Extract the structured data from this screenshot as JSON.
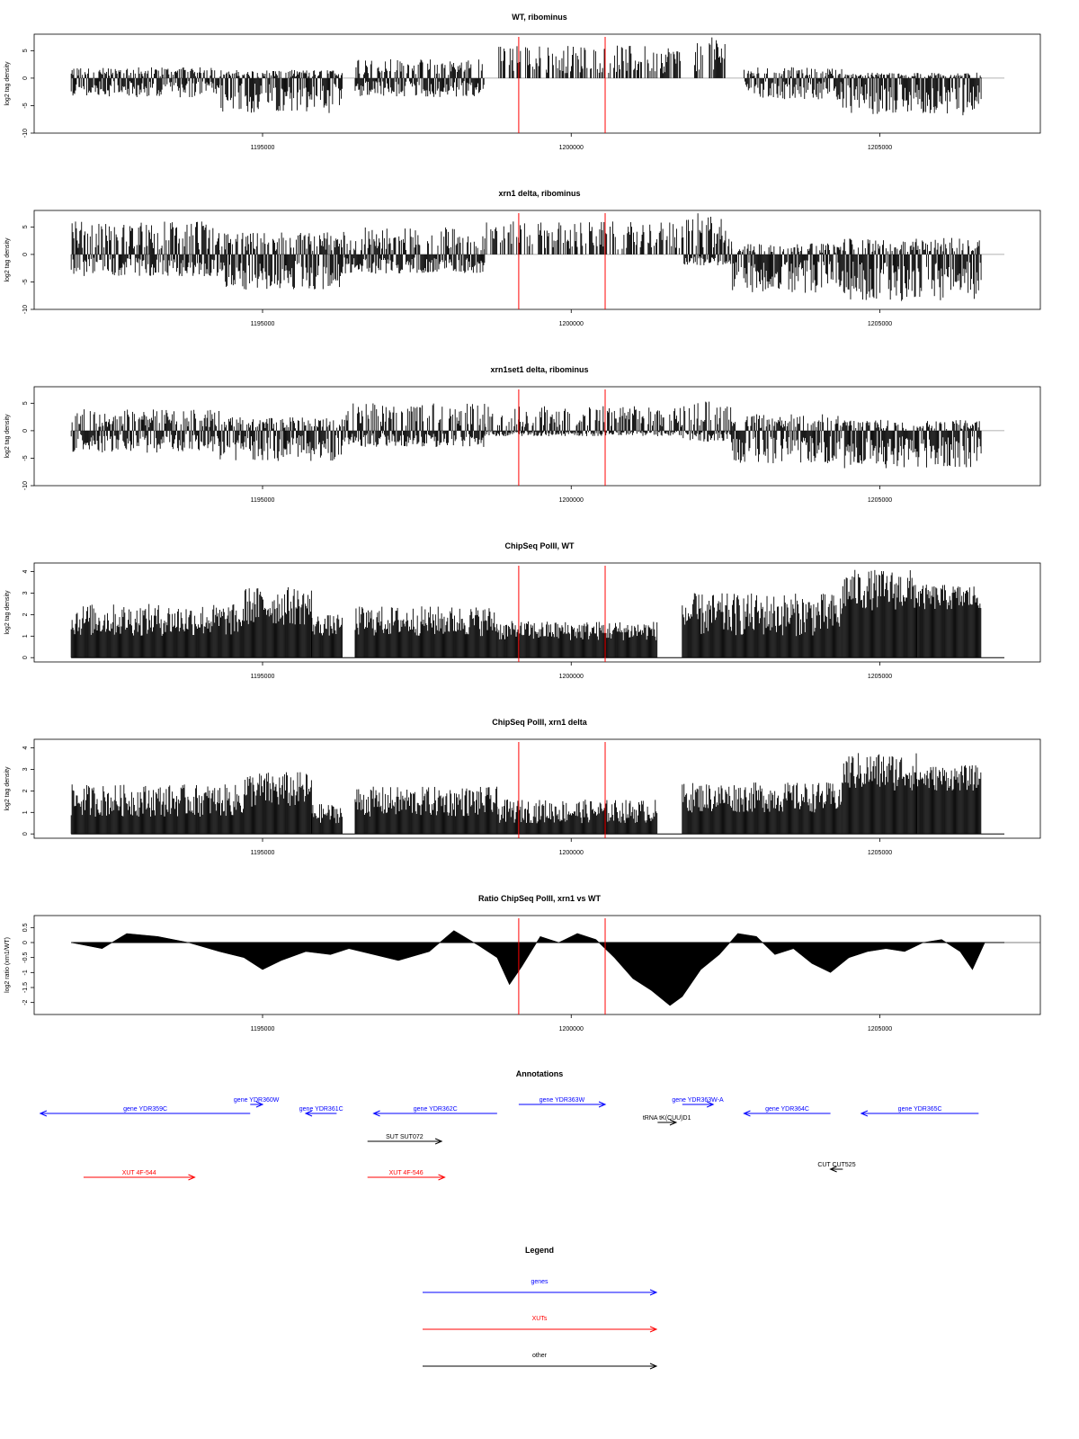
{
  "chart_data": [
    {
      "type": "bar",
      "title": "WT, ribominus",
      "ylabel": "log2 tag density",
      "ylim": [
        -10,
        8
      ],
      "yticks": [
        -10,
        -5,
        0,
        5
      ],
      "xlim": [
        1191300,
        1207600
      ],
      "xticks": [
        1195000,
        1200000,
        1205000
      ],
      "xtick_labels": [
        "1195000",
        "1200000",
        "1205000"
      ],
      "red_lines": [
        1199150,
        1200550
      ],
      "signal_range": [
        1191900,
        1206650
      ],
      "approx_envelope": [
        {
          "x": [
            1191900,
            1194300
          ],
          "top": 2,
          "bottom": -3.5
        },
        {
          "x": [
            1194300,
            1196300
          ],
          "top": 1.5,
          "bottom": -6.5
        },
        {
          "x": [
            1196500,
            1198600
          ],
          "top": 3.5,
          "bottom": -3.5
        },
        {
          "x": [
            1198800,
            1201800
          ],
          "top": 6,
          "bottom": 0
        },
        {
          "x": [
            1202000,
            1202500
          ],
          "top": 7.5,
          "bottom": 0
        },
        {
          "x": [
            1202800,
            1204400
          ],
          "top": 2,
          "bottom": -4
        },
        {
          "x": [
            1204400,
            1206650
          ],
          "top": 1,
          "bottom": -7
        }
      ]
    },
    {
      "type": "bar",
      "title": "xrn1 delta, ribominus",
      "ylabel": "log2 tag density",
      "ylim": [
        -10,
        8
      ],
      "yticks": [
        -10,
        -5,
        0,
        5
      ],
      "xlim": [
        1191300,
        1207600
      ],
      "xticks": [
        1195000,
        1200000,
        1205000
      ],
      "xtick_labels": [
        "1195000",
        "1200000",
        "1205000"
      ],
      "red_lines": [
        1199150,
        1200550
      ],
      "signal_range": [
        1191900,
        1206650
      ],
      "approx_envelope": [
        {
          "x": [
            1191900,
            1194300
          ],
          "top": 6,
          "bottom": -4
        },
        {
          "x": [
            1194300,
            1196300
          ],
          "top": 4,
          "bottom": -6.5
        },
        {
          "x": [
            1196300,
            1198600
          ],
          "top": 5,
          "bottom": -3.5
        },
        {
          "x": [
            1198600,
            1201800
          ],
          "top": 6,
          "bottom": 0
        },
        {
          "x": [
            1201800,
            1202600
          ],
          "top": 7.5,
          "bottom": -2
        },
        {
          "x": [
            1202600,
            1204400
          ],
          "top": 2,
          "bottom": -7
        },
        {
          "x": [
            1204400,
            1206650
          ],
          "top": 3,
          "bottom": -8.5
        }
      ]
    },
    {
      "type": "bar",
      "title": "xrn1set1 delta, ribominus",
      "ylabel": "log2 tag density",
      "ylim": [
        -10,
        8
      ],
      "yticks": [
        -10,
        -5,
        0,
        5
      ],
      "xlim": [
        1191300,
        1207600
      ],
      "xticks": [
        1195000,
        1200000,
        1205000
      ],
      "xtick_labels": [
        "1195000",
        "1200000",
        "1205000"
      ],
      "red_lines": [
        1199150,
        1200550
      ],
      "signal_range": [
        1191900,
        1206650
      ],
      "approx_envelope": [
        {
          "x": [
            1191900,
            1194300
          ],
          "top": 4,
          "bottom": -4
        },
        {
          "x": [
            1194300,
            1196300
          ],
          "top": 2.5,
          "bottom": -5.5
        },
        {
          "x": [
            1196300,
            1198600
          ],
          "top": 5,
          "bottom": -3
        },
        {
          "x": [
            1198600,
            1201800
          ],
          "top": 4.5,
          "bottom": -1
        },
        {
          "x": [
            1201800,
            1202600
          ],
          "top": 5.5,
          "bottom": -2
        },
        {
          "x": [
            1202600,
            1204400
          ],
          "top": 3,
          "bottom": -6
        },
        {
          "x": [
            1204400,
            1206650
          ],
          "top": 2,
          "bottom": -7
        }
      ]
    },
    {
      "type": "bar",
      "title": "ChipSeq PolII, WT",
      "ylabel": "log2 tag density",
      "ylim": [
        -0.2,
        4.4
      ],
      "yticks": [
        0,
        1,
        2,
        3,
        4
      ],
      "xlim": [
        1191300,
        1207600
      ],
      "xticks": [
        1195000,
        1200000,
        1205000
      ],
      "xtick_labels": [
        "1195000",
        "1200000",
        "1205000"
      ],
      "red_lines": [
        1199150,
        1200550
      ],
      "signal_range": [
        1191900,
        1206650
      ],
      "approx_envelope": [
        {
          "x": [
            1191900,
            1194700
          ],
          "top": 2.5,
          "base": 1
        },
        {
          "x": [
            1194700,
            1195800
          ],
          "top": 3.3,
          "base": 1.5
        },
        {
          "x": [
            1195800,
            1196300
          ],
          "top": 2,
          "base": 1
        },
        {
          "x": [
            1196500,
            1198800
          ],
          "top": 2.4,
          "base": 1
        },
        {
          "x": [
            1198800,
            1201400
          ],
          "top": 1.7,
          "base": 0.8
        },
        {
          "x": [
            1201800,
            1204400
          ],
          "top": 3,
          "base": 1
        },
        {
          "x": [
            1204400,
            1205600
          ],
          "top": 4.1,
          "base": 2.2
        },
        {
          "x": [
            1205600,
            1206650
          ],
          "top": 3.4,
          "base": 2.2
        }
      ]
    },
    {
      "type": "bar",
      "title": "ChipSeq PolII, xrn1 delta",
      "ylabel": "log2 tag density",
      "ylim": [
        -0.2,
        4.4
      ],
      "yticks": [
        0,
        1,
        2,
        3,
        4
      ],
      "xlim": [
        1191300,
        1207600
      ],
      "xticks": [
        1195000,
        1200000,
        1205000
      ],
      "xtick_labels": [
        "1195000",
        "1200000",
        "1205000"
      ],
      "red_lines": [
        1199150,
        1200550
      ],
      "signal_range": [
        1191900,
        1206650
      ],
      "approx_envelope": [
        {
          "x": [
            1191900,
            1194700
          ],
          "top": 2.3,
          "base": 0.8
        },
        {
          "x": [
            1194700,
            1195800
          ],
          "top": 2.9,
          "base": 1.2
        },
        {
          "x": [
            1195800,
            1196300
          ],
          "top": 1.4,
          "base": 0.5
        },
        {
          "x": [
            1196500,
            1198800
          ],
          "top": 2.2,
          "base": 0.8
        },
        {
          "x": [
            1198800,
            1201400
          ],
          "top": 1.6,
          "base": 0.5
        },
        {
          "x": [
            1201800,
            1204400
          ],
          "top": 2.4,
          "base": 1
        },
        {
          "x": [
            1204400,
            1205600
          ],
          "top": 3.8,
          "base": 2
        },
        {
          "x": [
            1205600,
            1206650
          ],
          "top": 3.2,
          "base": 2
        }
      ]
    },
    {
      "type": "area",
      "title": "Ratio ChipSeq PolII, xrn1 vs WT",
      "ylabel": "log2 ratio (xrn1/WT)",
      "ylim": [
        -2.4,
        0.9
      ],
      "yticks": [
        -2.0,
        -1.5,
        -1.0,
        -0.5,
        0.0,
        0.5
      ],
      "xlim": [
        1191300,
        1207600
      ],
      "xticks": [
        1195000,
        1200000,
        1205000
      ],
      "xtick_labels": [
        "1195000",
        "1200000",
        "1205000"
      ],
      "red_lines": [
        1199150,
        1200550
      ],
      "x": [
        1191900,
        1192400,
        1192800,
        1193300,
        1193800,
        1194300,
        1194700,
        1195000,
        1195300,
        1195700,
        1196100,
        1196400,
        1196800,
        1197200,
        1197700,
        1198100,
        1198500,
        1198800,
        1199000,
        1199200,
        1199500,
        1199800,
        1200100,
        1200400,
        1200700,
        1201000,
        1201300,
        1201600,
        1201800,
        1202100,
        1202400,
        1202700,
        1203000,
        1203300,
        1203600,
        1203900,
        1204200,
        1204500,
        1204800,
        1205100,
        1205400,
        1205700,
        1206000,
        1206300,
        1206500,
        1206700,
        1207600
      ],
      "y": [
        0.0,
        -0.2,
        0.3,
        0.2,
        0.0,
        -0.3,
        -0.5,
        -0.9,
        -0.6,
        -0.3,
        -0.4,
        -0.2,
        -0.4,
        -0.6,
        -0.3,
        0.4,
        -0.1,
        -0.5,
        -1.4,
        -0.8,
        0.2,
        0.0,
        0.3,
        0.1,
        -0.5,
        -1.2,
        -1.6,
        -2.1,
        -1.8,
        -0.9,
        -0.4,
        0.3,
        0.2,
        -0.4,
        -0.2,
        -0.7,
        -1.0,
        -0.5,
        -0.3,
        -0.2,
        -0.3,
        0.0,
        0.1,
        -0.3,
        -0.9,
        0.0,
        0.0
      ]
    }
  ],
  "annotations": {
    "title": "Annotations",
    "xlim": [
      1191300,
      1207600
    ],
    "items": [
      {
        "label": "gene YDR359C",
        "kind": "gene",
        "start": 1191400,
        "end": 1194800,
        "dir": "left"
      },
      {
        "label": "gene YDR360W",
        "kind": "gene",
        "start": 1194800,
        "end": 1195000,
        "dir": "right"
      },
      {
        "label": "gene YDR361C",
        "kind": "gene",
        "start": 1195700,
        "end": 1196200,
        "dir": "left"
      },
      {
        "label": "gene YDR362C",
        "kind": "gene",
        "start": 1196800,
        "end": 1198800,
        "dir": "left"
      },
      {
        "label": "gene YDR363W",
        "kind": "gene",
        "start": 1199150,
        "end": 1200550,
        "dir": "right"
      },
      {
        "label": "gene YDR363W-A",
        "kind": "gene",
        "start": 1201800,
        "end": 1202300,
        "dir": "right"
      },
      {
        "label": "gene YDR364C",
        "kind": "gene",
        "start": 1202800,
        "end": 1204200,
        "dir": "left"
      },
      {
        "label": "gene YDR365C",
        "kind": "gene",
        "start": 1204700,
        "end": 1206600,
        "dir": "left"
      },
      {
        "label": "tRNA tK(CUU)D1",
        "kind": "other",
        "start": 1201400,
        "end": 1201700,
        "dir": "right"
      },
      {
        "label": "SUT SUT072",
        "kind": "other",
        "start": 1196700,
        "end": 1197900,
        "dir": "right"
      },
      {
        "label": "XUT 4F-544",
        "kind": "xut",
        "start": 1192100,
        "end": 1193900,
        "dir": "right"
      },
      {
        "label": "XUT 4F-546",
        "kind": "xut",
        "start": 1196700,
        "end": 1197950,
        "dir": "right"
      },
      {
        "label": "CUT CUT525",
        "kind": "other",
        "start": 1204200,
        "end": 1204400,
        "dir": "left"
      }
    ]
  },
  "legend": {
    "title": "Legend",
    "items": [
      {
        "label": "genes",
        "color": "#0000ff"
      },
      {
        "label": "XUTs",
        "color": "#ff0000"
      },
      {
        "label": "other",
        "color": "#000000"
      }
    ]
  },
  "colors": {
    "gene": "#0000ff",
    "xut": "#ff0000",
    "other": "#000000",
    "marker": "#ff0000"
  }
}
